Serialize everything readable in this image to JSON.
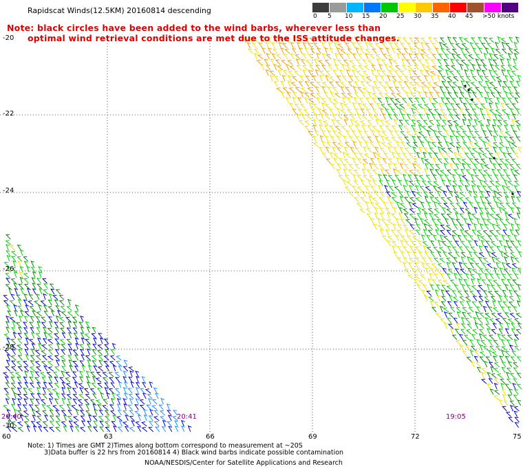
{
  "title": "Rapidscat Winds(12.5KM) 20160814 descending",
  "note_lines": [
    "Note: black circles have been added to the wind barbs, wherever less than",
    "optimal wind retrieval conditions are met due to the ISS attitude changes."
  ],
  "legend": {
    "colors": [
      "#3c3c3c",
      "#9a9a9a",
      "#00b4ff",
      "#0078ff",
      "#00c800",
      "#ffff00",
      "#ffc800",
      "#ff6400",
      "#ff0000",
      "#a0522d",
      "#ff00ff",
      "#500080"
    ],
    "labels": [
      "0",
      "5",
      "10",
      "15",
      "20",
      "25",
      "30",
      "35",
      "40",
      "45",
      ">50 knots"
    ]
  },
  "lat_labels": [
    "-20",
    "-22",
    "-24",
    "-26",
    "-28",
    "-30"
  ],
  "lon_labels": [
    "60",
    "63",
    "66",
    "69",
    "72",
    "75"
  ],
  "times": [
    "20:40",
    "20:41",
    "19:05"
  ],
  "footer": {
    "line1": "Note: 1) Times are GMT 2)Times along bottom correspond to measurement at ~20S",
    "line2": "3)Data buffer is 22 hrs from 20160814 4) Black wind barbs indicate possible contamination",
    "line3": "NOAA/NESDIS/Center for Satellite Applications and Research"
  }
}
